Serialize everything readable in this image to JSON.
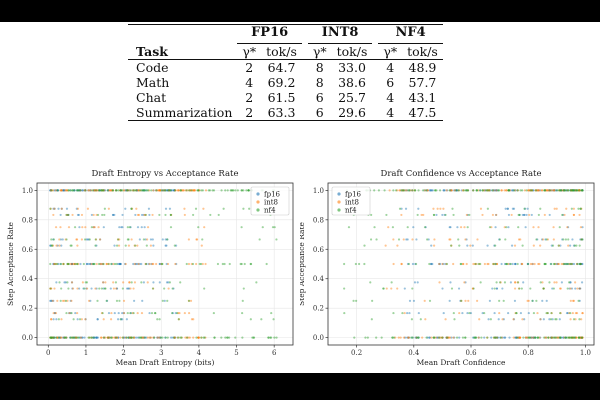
{
  "table": {
    "groups": [
      "FP16",
      "INT8",
      "NF4"
    ],
    "task_header": "Task",
    "gamma_header": "γ*",
    "toks_header": "tok/s",
    "rows": [
      {
        "task": "Code",
        "fp16_gamma": "2",
        "fp16_toks": "64.7",
        "int8_gamma": "8",
        "int8_toks": "33.0",
        "nf4_gamma": "4",
        "nf4_toks": "48.9"
      },
      {
        "task": "Math",
        "fp16_gamma": "4",
        "fp16_toks": "69.2",
        "int8_gamma": "8",
        "int8_toks": "38.6",
        "nf4_gamma": "6",
        "nf4_toks": "57.7"
      },
      {
        "task": "Chat",
        "fp16_gamma": "2",
        "fp16_toks": "61.5",
        "int8_gamma": "6",
        "int8_toks": "25.7",
        "nf4_gamma": "4",
        "nf4_toks": "43.1"
      },
      {
        "task": "Summarization",
        "fp16_gamma": "2",
        "fp16_toks": "63.3",
        "int8_gamma": "6",
        "int8_toks": "29.6",
        "nf4_gamma": "4",
        "nf4_toks": "47.5"
      }
    ]
  },
  "chart_data": [
    {
      "type": "scatter",
      "title": "Draft Entropy vs Acceptance Rate",
      "xlabel": "Mean Draft Entropy (bits)",
      "ylabel": "Step Acceptance Rate",
      "xlim": [
        -0.3,
        6.5
      ],
      "ylim": [
        -0.05,
        1.05
      ],
      "xticks": [
        0,
        1,
        2,
        3,
        4,
        5,
        6
      ],
      "xtick_labels": [
        "0",
        "1",
        "2",
        "3",
        "4",
        "5",
        "6"
      ],
      "yticks": [
        0.0,
        0.2,
        0.4,
        0.6,
        0.8,
        1.0
      ],
      "ytick_labels": [
        "0.0",
        "0.2",
        "0.4",
        "0.6",
        "0.8",
        "1.0"
      ],
      "grid": true,
      "legend_position": "top-right",
      "acceptance_levels": [
        0.0,
        0.125,
        0.1667,
        0.25,
        0.3333,
        0.375,
        0.5,
        0.625,
        0.6667,
        0.75,
        0.8333,
        0.875,
        1.0
      ],
      "series": [
        {
          "name": "fp16",
          "color": "#1f77b4",
          "x_range": [
            0.05,
            3.4
          ]
        },
        {
          "name": "int8",
          "color": "#ff7f0e",
          "x_range": [
            0.05,
            4.2
          ]
        },
        {
          "name": "nf4",
          "color": "#2ca02c",
          "x_range": [
            0.05,
            6.1
          ]
        }
      ]
    },
    {
      "type": "scatter",
      "title": "Draft Confidence vs Acceptance Rate",
      "xlabel": "Mean Draft Confidence",
      "ylabel": "Step Acceptance Rate",
      "xlim": [
        0.1,
        1.03
      ],
      "ylim": [
        -0.05,
        1.05
      ],
      "xticks": [
        0.2,
        0.4,
        0.6,
        0.8,
        1.0
      ],
      "xtick_labels": [
        "0.2",
        "0.4",
        "0.6",
        "0.8",
        "1.0"
      ],
      "yticks": [
        0.0,
        0.2,
        0.4,
        0.6,
        0.8,
        1.0
      ],
      "ytick_labels": [
        "0.0",
        "0.2",
        "0.4",
        "0.6",
        "0.8",
        "1.0"
      ],
      "grid": true,
      "legend_position": "top-left",
      "acceptance_levels": [
        0.0,
        0.125,
        0.1667,
        0.25,
        0.3333,
        0.375,
        0.5,
        0.625,
        0.6667,
        0.75,
        0.8333,
        0.875,
        1.0
      ],
      "series": [
        {
          "name": "fp16",
          "color": "#1f77b4",
          "x_range": [
            0.35,
            0.99
          ]
        },
        {
          "name": "int8",
          "color": "#ff7f0e",
          "x_range": [
            0.3,
            0.99
          ]
        },
        {
          "name": "nf4",
          "color": "#2ca02c",
          "x_range": [
            0.15,
            0.99
          ]
        }
      ]
    }
  ]
}
